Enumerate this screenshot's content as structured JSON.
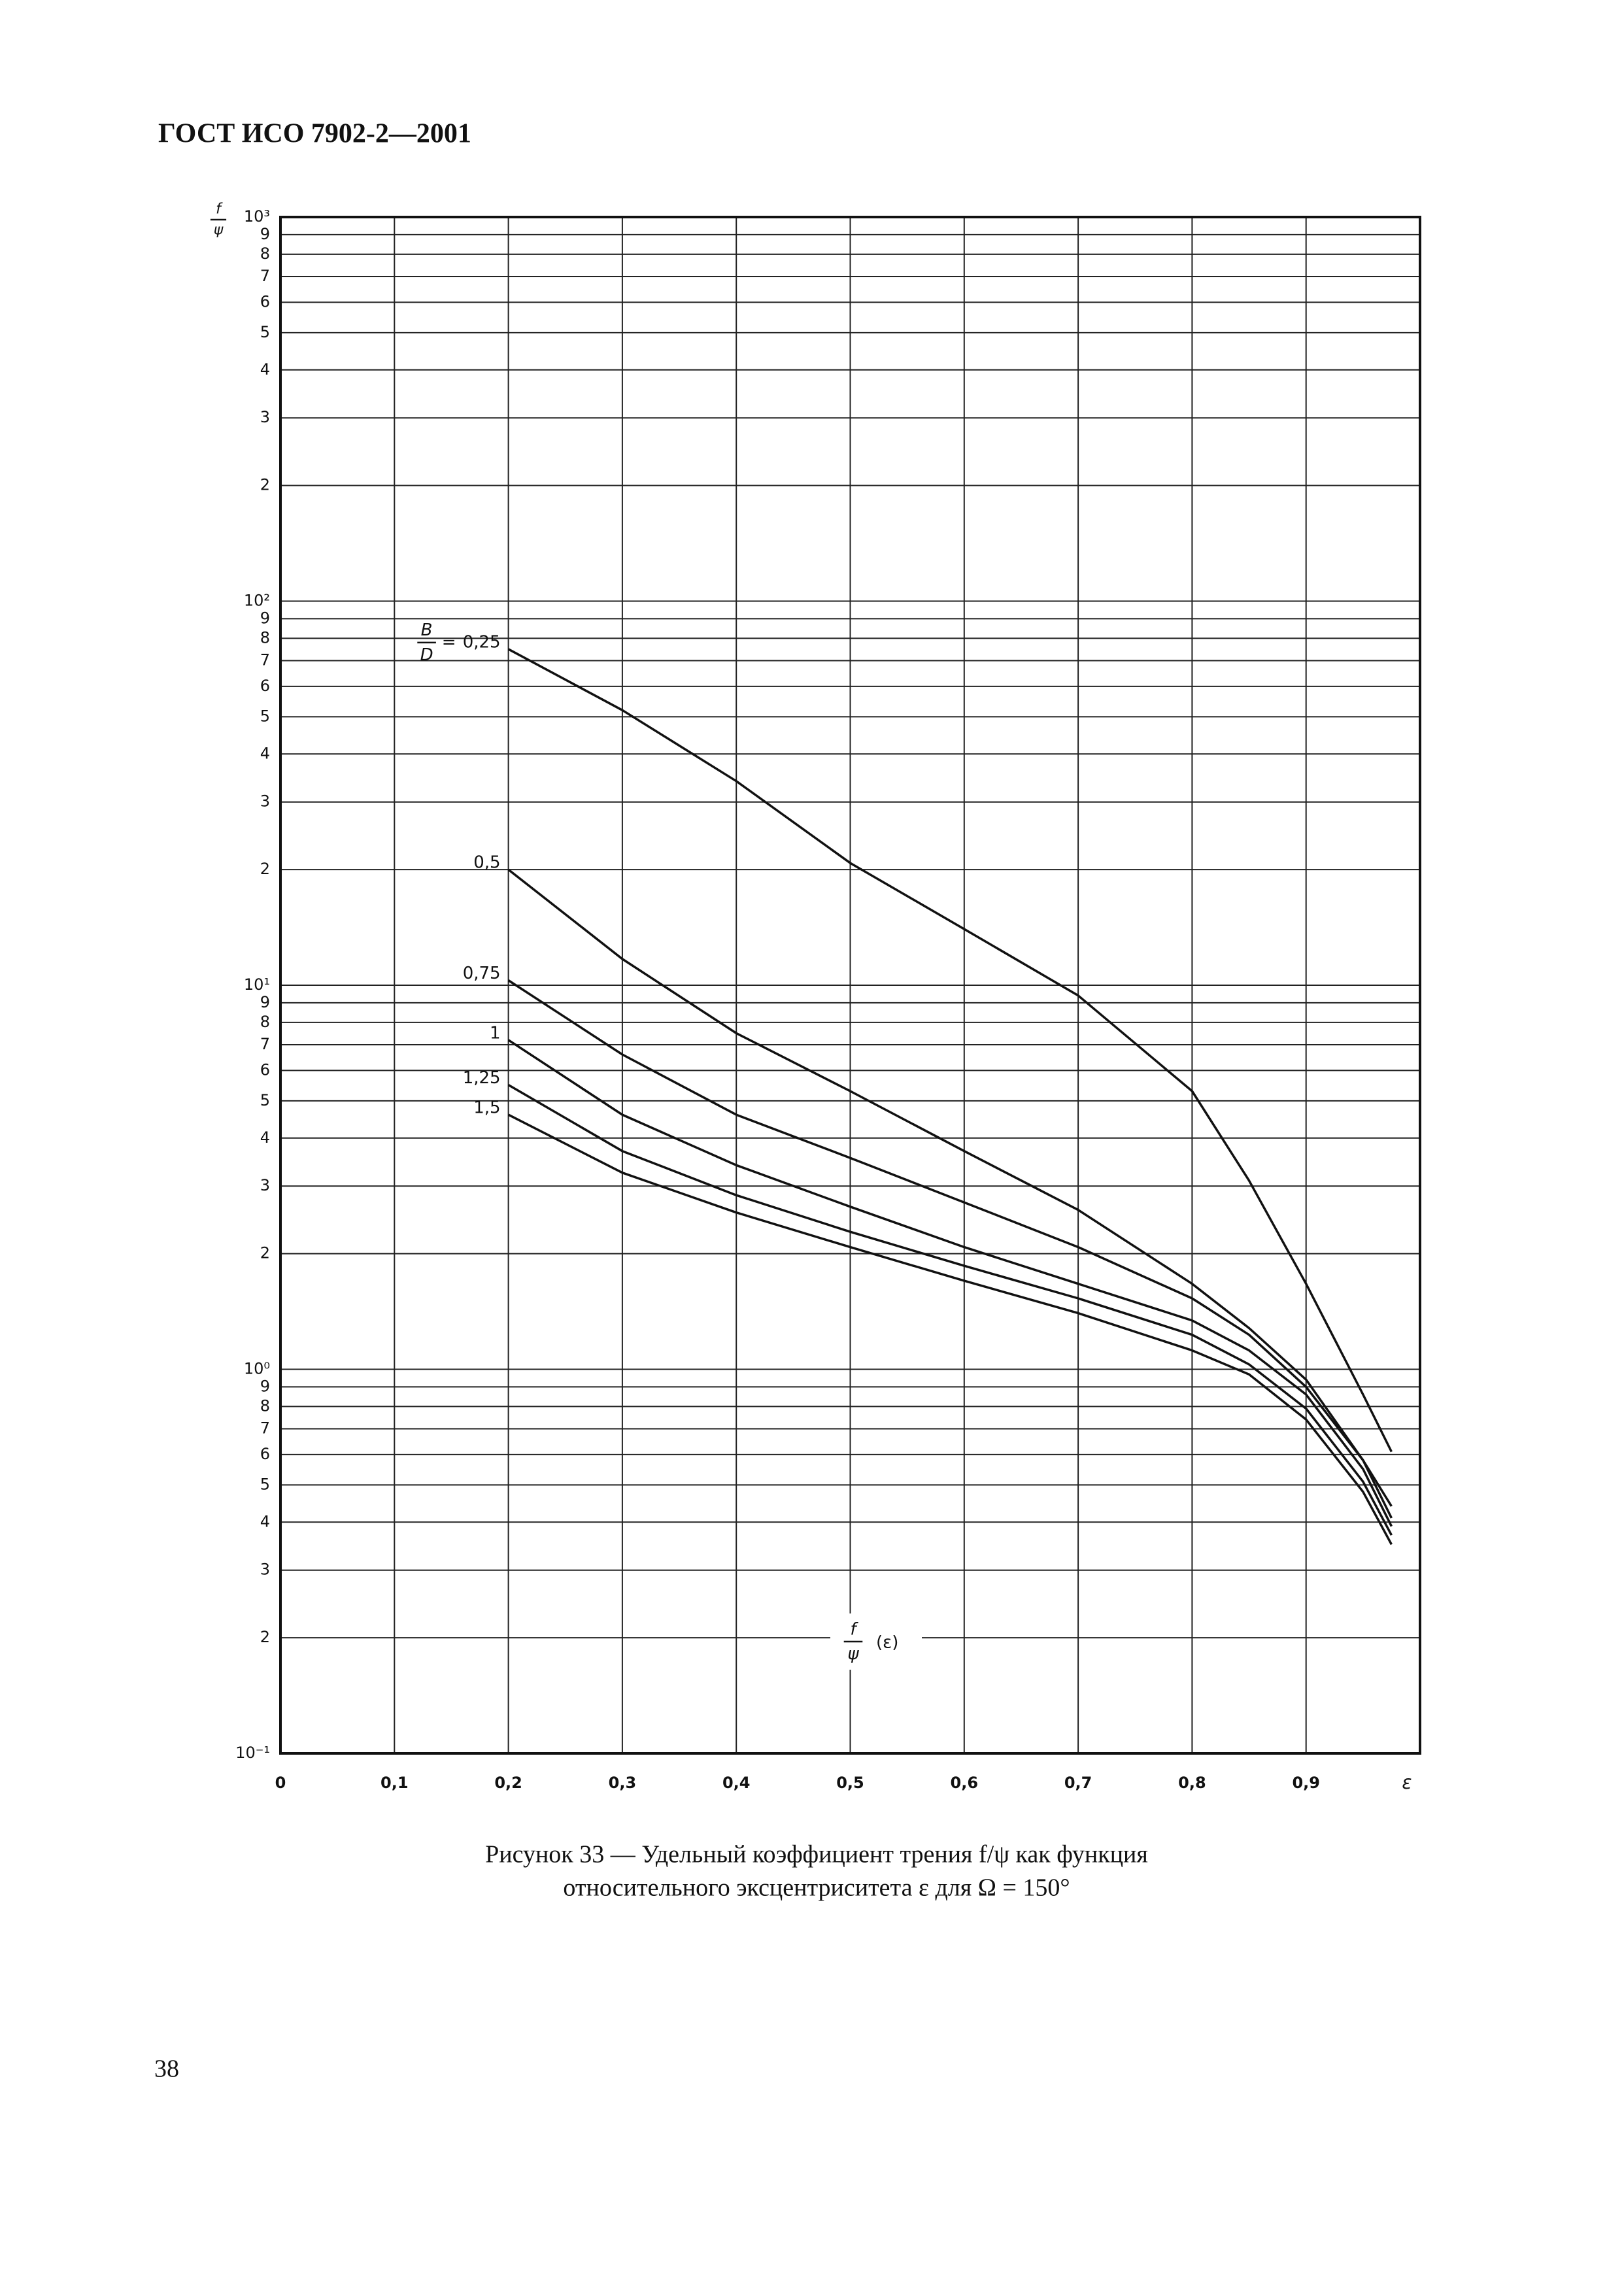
{
  "header": "ГОСТ ИСО 7902-2—2001",
  "chart_data": {
    "type": "line",
    "y_label": {
      "numerator": "f",
      "denominator": "ψ"
    },
    "x_label": "ε",
    "annotation": {
      "numerator": "f",
      "denominator": "ψ",
      "text": "(ε)"
    },
    "parameter_label": {
      "numerator": "B",
      "denominator": "D",
      "text": "="
    },
    "x": [
      0.2,
      0.3,
      0.4,
      0.5,
      0.6,
      0.7,
      0.8,
      0.85,
      0.9,
      0.95,
      0.975
    ],
    "series": [
      {
        "name": "0,25",
        "color": "#111111",
        "values": [
          75,
          52,
          34,
          20.8,
          14,
          9.4,
          5.3,
          3.1,
          1.67,
          0.86,
          0.61
        ]
      },
      {
        "name": "0,5",
        "color": "#111111",
        "values": [
          20,
          11.7,
          7.5,
          5.3,
          3.7,
          2.6,
          1.67,
          1.28,
          0.94,
          0.58,
          0.44
        ]
      },
      {
        "name": "0,75",
        "color": "#111111",
        "values": [
          10.3,
          6.6,
          4.6,
          3.55,
          2.72,
          2.08,
          1.53,
          1.23,
          0.9,
          0.58,
          0.41
        ]
      },
      {
        "name": "1",
        "color": "#111111",
        "values": [
          7.2,
          4.6,
          3.4,
          2.65,
          2.08,
          1.67,
          1.34,
          1.12,
          0.86,
          0.55,
          0.39
        ]
      },
      {
        "name": "1,25",
        "color": "#111111",
        "values": [
          5.5,
          3.7,
          2.84,
          2.28,
          1.86,
          1.53,
          1.23,
          1.03,
          0.79,
          0.51,
          0.37
        ]
      },
      {
        "name": "1,5",
        "color": "#111111",
        "values": [
          4.6,
          3.25,
          2.56,
          2.08,
          1.7,
          1.4,
          1.12,
          0.97,
          0.74,
          0.48,
          0.35
        ]
      }
    ],
    "xlim": [
      0,
      1
    ],
    "ylim": [
      0.1,
      1000
    ],
    "ylog": true,
    "grid": true,
    "xticks": [
      0,
      {
        "value": 0.1,
        "label": "0,1"
      },
      {
        "value": 0.2,
        "label": "0,2"
      },
      {
        "value": 0.3,
        "label": "0,3"
      },
      {
        "value": 0.4,
        "label": "0,4"
      },
      {
        "value": 0.5,
        "label": "0,5"
      },
      {
        "value": 0.6,
        "label": "0,6"
      },
      {
        "value": 0.7,
        "label": "0,7"
      },
      {
        "value": 0.8,
        "label": "0,8"
      },
      {
        "value": 0.9,
        "label": "0,9"
      }
    ],
    "yticks": [
      {
        "value": 0.1,
        "label": "10⁻¹"
      },
      {
        "value": 0.2,
        "label": "2"
      },
      {
        "value": 0.3,
        "label": "3"
      },
      {
        "value": 0.4,
        "label": "4"
      },
      {
        "value": 0.5,
        "label": "5"
      },
      {
        "value": 0.6,
        "label": "6"
      },
      {
        "value": 0.7,
        "label": "7"
      },
      {
        "value": 0.8,
        "label": "8"
      },
      {
        "value": 0.9,
        "label": "9"
      },
      {
        "value": 1,
        "label": "10⁰"
      },
      2,
      3,
      4,
      5,
      6,
      7,
      8,
      9,
      {
        "value": 10,
        "label": "10¹"
      },
      {
        "value": 20,
        "label": "2"
      },
      {
        "value": 30,
        "label": "3"
      },
      {
        "value": 40,
        "label": "4"
      },
      {
        "value": 50,
        "label": "5"
      },
      {
        "value": 60,
        "label": "6"
      },
      {
        "value": 70,
        "label": "7"
      },
      {
        "value": 80,
        "label": "8"
      },
      {
        "value": 90,
        "label": "9"
      },
      {
        "value": 100,
        "label": "10²"
      },
      {
        "value": 200,
        "label": "2"
      },
      {
        "value": 300,
        "label": "3"
      },
      {
        "value": 400,
        "label": "4"
      },
      {
        "value": 500,
        "label": "5"
      },
      {
        "value": 600,
        "label": "6"
      },
      {
        "value": 700,
        "label": "7"
      },
      {
        "value": 800,
        "label": "8"
      },
      {
        "value": 900,
        "label": "9"
      },
      {
        "value": 1000,
        "label": "10³"
      }
    ]
  },
  "caption": [
    "Рисунок 33 — Удельный коэффициент трения f/ψ как функция",
    "относительного эксцентриситета ε для Ω = 150°"
  ],
  "page_number": "38"
}
